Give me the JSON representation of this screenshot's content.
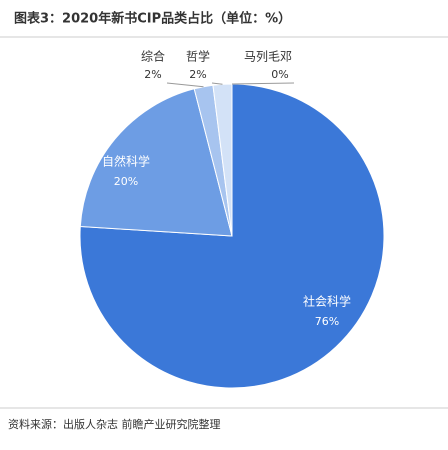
{
  "chart_data": {
    "type": "pie",
    "title": "图表3：2020年新书CIP品类占比（单位：%）",
    "categories": [
      "社会科学",
      "自然科学",
      "综合",
      "哲学",
      "马列毛邓"
    ],
    "values": [
      76,
      20,
      2,
      2,
      0
    ],
    "value_labels": [
      "76%",
      "20%",
      "2%",
      "2%",
      "0%"
    ],
    "colors": [
      "#3b78d8",
      "#6d9de4",
      "#a7c4ef",
      "#d3e2f7",
      "#eef3fb"
    ],
    "source": "资料来源：出版人杂志 前瞻产业研究院整理"
  }
}
